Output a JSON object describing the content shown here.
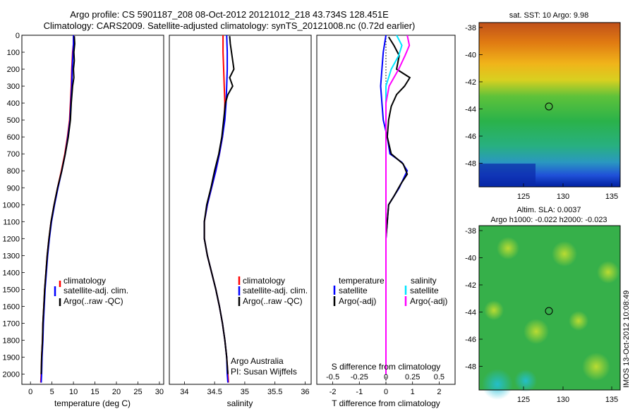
{
  "titles": {
    "line1": "Argo profile: CS 5901187_208 08-Oct-2012 20121012_218 43.734S 128.451E",
    "line2": "Climatology: CARS2009. Satellite-adjusted climatology: synTS_20121008.nc (0.72d earlier)"
  },
  "panels": {
    "temperature": {
      "xlabel": "temperature (deg C)",
      "xticks": [
        "0",
        "5",
        "10",
        "15",
        "20",
        "25",
        "30"
      ],
      "legend": [
        "climatology",
        "satellite-adj. clim.",
        "Argo(..raw -QC)"
      ]
    },
    "salinity": {
      "xlabel": "salinity",
      "xticks": [
        "34",
        "34.5",
        "35",
        "35.5",
        "36"
      ],
      "legend": [
        "climatology",
        "satellite-adj. clim.",
        "Argo(..raw -QC)"
      ],
      "annotation1": "Argo Australia",
      "annotation2": "PI: Susan Wijffels"
    },
    "difference": {
      "xlabel": "T difference from climatology",
      "xticks": [
        "-2",
        "-1",
        "0",
        "1",
        "2"
      ],
      "top_label": "S difference from climatology",
      "top_ticks": [
        "-0.5",
        "-0.25",
        "0",
        "0.25",
        "0.5"
      ],
      "legend_head_t": "temperature",
      "legend_head_s": "salinity",
      "legend_t": [
        "satellite",
        "Argo(-adj)"
      ],
      "legend_s": [
        "satellite",
        "Argo(-adj)"
      ]
    },
    "depth_ticks": [
      "0",
      "100",
      "200",
      "300",
      "400",
      "500",
      "600",
      "700",
      "800",
      "900",
      "1000",
      "1100",
      "1200",
      "1300",
      "1400",
      "1500",
      "1600",
      "1700",
      "1800",
      "1900",
      "2000"
    ]
  },
  "maps": {
    "sst_title": "sat. SST: 10 Argo: 9.98",
    "sla_title": "Altim. SLA: 0.0037",
    "sla_subtitle": "Argo h1000: -0.022 h2000: -0.023",
    "yticks": [
      "-38",
      "-40",
      "-42",
      "-44",
      "-46",
      "-48"
    ],
    "xticks": [
      "125",
      "130",
      "135"
    ]
  },
  "credit": "IMOS 13-Oct-2012 10:08:49",
  "colors": {
    "climatology": "#ff0000",
    "satellite": "#0000ff",
    "argo": "#000000",
    "salinity_sat": "#00e5ff",
    "salinity_argo": "#ff00ff"
  },
  "chart_data": [
    {
      "type": "line",
      "title": "",
      "xlabel": "temperature (deg C)",
      "ylabel": "",
      "xlim": [
        -2,
        31
      ],
      "ylim": [
        2060,
        0
      ],
      "series": [
        {
          "name": "climatology",
          "points": [
            [
              10,
              0
            ],
            [
              10,
              50
            ],
            [
              9.8,
              100
            ],
            [
              9.6,
              200
            ],
            [
              9.5,
              300
            ],
            [
              9.3,
              400
            ],
            [
              9.1,
              500
            ],
            [
              8.6,
              600
            ],
            [
              8.0,
              700
            ],
            [
              7.2,
              800
            ],
            [
              6.3,
              900
            ],
            [
              5.5,
              1000
            ],
            [
              4.8,
              1100
            ],
            [
              4.3,
              1200
            ],
            [
              3.9,
              1300
            ],
            [
              3.6,
              1400
            ],
            [
              3.3,
              1500
            ],
            [
              3.1,
              1600
            ],
            [
              2.9,
              1700
            ],
            [
              2.8,
              1800
            ],
            [
              2.6,
              1900
            ],
            [
              2.5,
              2000
            ],
            [
              2.4,
              2050
            ]
          ]
        },
        {
          "name": "satellite-adj. clim.",
          "points": [
            [
              10,
              0
            ],
            [
              10,
              50
            ],
            [
              9.9,
              100
            ],
            [
              9.7,
              200
            ],
            [
              9.6,
              300
            ],
            [
              9.4,
              400
            ],
            [
              9.2,
              500
            ],
            [
              8.7,
              600
            ],
            [
              8.1,
              700
            ],
            [
              7.3,
              800
            ],
            [
              6.4,
              900
            ],
            [
              5.6,
              1000
            ],
            [
              4.9,
              1100
            ],
            [
              4.4,
              1200
            ],
            [
              4.0,
              1300
            ],
            [
              3.7,
              1400
            ],
            [
              3.4,
              1500
            ],
            [
              3.2,
              1600
            ],
            [
              3.0,
              1700
            ],
            [
              2.9,
              1800
            ],
            [
              2.7,
              1900
            ],
            [
              2.6,
              2000
            ],
            [
              2.5,
              2050
            ]
          ]
        },
        {
          "name": "Argo(..raw -QC)",
          "points": [
            [
              10.2,
              5
            ],
            [
              10.3,
              50
            ],
            [
              10.1,
              100
            ],
            [
              10.2,
              150
            ],
            [
              10.0,
              200
            ],
            [
              10.1,
              250
            ],
            [
              9.8,
              300
            ],
            [
              9.5,
              400
            ],
            [
              9.3,
              500
            ],
            [
              8.8,
              600
            ],
            [
              8.1,
              700
            ],
            [
              7.3,
              800
            ],
            [
              6.3,
              900
            ],
            [
              5.5,
              1000
            ],
            [
              4.8,
              1100
            ],
            [
              4.3,
              1200
            ],
            [
              3.9,
              1300
            ],
            [
              3.6,
              1400
            ],
            [
              3.3,
              1500
            ],
            [
              3.1,
              1600
            ],
            [
              2.9,
              1700
            ],
            [
              2.8,
              1800
            ],
            [
              2.6,
              1900
            ],
            [
              2.5,
              2000
            ]
          ]
        }
      ]
    },
    {
      "type": "line",
      "title": "",
      "xlabel": "salinity",
      "ylabel": "",
      "xlim": [
        33.75,
        36.1
      ],
      "ylim": [
        2060,
        0
      ],
      "series": [
        {
          "name": "climatology",
          "points": [
            [
              34.64,
              0
            ],
            [
              34.64,
              100
            ],
            [
              34.65,
              200
            ],
            [
              34.66,
              300
            ],
            [
              34.67,
              400
            ],
            [
              34.66,
              500
            ],
            [
              34.63,
              600
            ],
            [
              34.58,
              700
            ],
            [
              34.52,
              800
            ],
            [
              34.45,
              900
            ],
            [
              34.38,
              1000
            ],
            [
              34.33,
              1100
            ],
            [
              34.33,
              1200
            ],
            [
              34.38,
              1300
            ],
            [
              34.45,
              1400
            ],
            [
              34.52,
              1500
            ],
            [
              34.58,
              1600
            ],
            [
              34.63,
              1700
            ],
            [
              34.67,
              1800
            ],
            [
              34.7,
              1900
            ],
            [
              34.72,
              2000
            ],
            [
              34.73,
              2050
            ]
          ]
        },
        {
          "name": "satellite-adj. clim.",
          "points": [
            [
              34.7,
              0
            ],
            [
              34.71,
              100
            ],
            [
              34.71,
              200
            ],
            [
              34.7,
              300
            ],
            [
              34.69,
              400
            ],
            [
              34.67,
              500
            ],
            [
              34.63,
              600
            ],
            [
              34.58,
              700
            ],
            [
              34.52,
              800
            ],
            [
              34.45,
              900
            ],
            [
              34.38,
              1000
            ],
            [
              34.33,
              1100
            ],
            [
              34.33,
              1200
            ],
            [
              34.38,
              1300
            ],
            [
              34.45,
              1400
            ],
            [
              34.52,
              1500
            ],
            [
              34.58,
              1600
            ],
            [
              34.63,
              1700
            ],
            [
              34.67,
              1800
            ],
            [
              34.7,
              1900
            ],
            [
              34.71,
              2000
            ],
            [
              34.72,
              2050
            ]
          ]
        },
        {
          "name": "Argo(..raw -QC)",
          "points": [
            [
              34.75,
              5
            ],
            [
              34.76,
              50
            ],
            [
              34.78,
              100
            ],
            [
              34.8,
              150
            ],
            [
              34.82,
              200
            ],
            [
              34.75,
              250
            ],
            [
              34.8,
              300
            ],
            [
              34.72,
              350
            ],
            [
              34.68,
              400
            ],
            [
              34.65,
              500
            ],
            [
              34.62,
              600
            ],
            [
              34.57,
              700
            ],
            [
              34.5,
              800
            ],
            [
              34.44,
              900
            ],
            [
              34.37,
              1000
            ],
            [
              34.33,
              1100
            ],
            [
              34.33,
              1200
            ],
            [
              34.38,
              1300
            ],
            [
              34.45,
              1400
            ],
            [
              34.52,
              1500
            ],
            [
              34.58,
              1600
            ],
            [
              34.63,
              1700
            ],
            [
              34.67,
              1800
            ],
            [
              34.7,
              1900
            ],
            [
              34.72,
              2000
            ]
          ]
        }
      ]
    },
    {
      "type": "line",
      "title": "",
      "xlabel": "T difference from climatology",
      "x2label": "S difference from climatology",
      "ylabel": "",
      "xlim": [
        -2.6,
        2.6
      ],
      "x2lim": [
        -0.65,
        0.65
      ],
      "ylim": [
        2060,
        0
      ],
      "series": [
        {
          "name": "temperature satellite",
          "points": [
            [
              0.0,
              0
            ],
            [
              -0.1,
              100
            ],
            [
              -0.15,
              200
            ],
            [
              -0.2,
              300
            ],
            [
              -0.15,
              400
            ],
            [
              -0.1,
              500
            ],
            [
              0.05,
              600
            ],
            [
              0.15,
              700
            ],
            [
              0.6,
              750
            ],
            [
              0.8,
              800
            ],
            [
              0.5,
              900
            ],
            [
              0.3,
              950
            ],
            [
              0.1,
              1000
            ],
            [
              0.05,
              1100
            ],
            [
              0.0,
              1200
            ],
            [
              0.0,
              1400
            ],
            [
              0.0,
              1600
            ],
            [
              0.0,
              1800
            ],
            [
              0.0,
              2000
            ]
          ]
        },
        {
          "name": "temperature Argo(-adj)",
          "points": [
            [
              0.1,
              10
            ],
            [
              0.3,
              60
            ],
            [
              0.5,
              120
            ],
            [
              0.4,
              200
            ],
            [
              0.9,
              250
            ],
            [
              0.7,
              300
            ],
            [
              0.4,
              350
            ],
            [
              0.2,
              420
            ],
            [
              0.1,
              500
            ],
            [
              0.05,
              600
            ],
            [
              0.2,
              700
            ],
            [
              0.65,
              760
            ],
            [
              0.8,
              820
            ],
            [
              0.55,
              880
            ],
            [
              0.3,
              950
            ],
            [
              0.1,
              1000
            ],
            [
              0.05,
              1100
            ],
            [
              0.0,
              1200
            ],
            [
              0.0,
              1400
            ],
            [
              0.0,
              1600
            ],
            [
              0.0,
              1800
            ],
            [
              0.0,
              2000
            ]
          ]
        },
        {
          "name": "salinity satellite",
          "points": [
            [
              0.1,
              0
            ],
            [
              0.15,
              60
            ],
            [
              0.12,
              120
            ],
            [
              0.05,
              200
            ],
            [
              0.0,
              300
            ],
            [
              0.0,
              400
            ],
            [
              0.0,
              600
            ],
            [
              0.0,
              800
            ],
            [
              0.0,
              1000
            ],
            [
              0.0,
              1200
            ],
            [
              0.0,
              1400
            ],
            [
              0.0,
              1600
            ],
            [
              0.0,
              1800
            ],
            [
              0.0,
              2000
            ]
          ]
        },
        {
          "name": "salinity Argo(-adj)",
          "points": [
            [
              0.2,
              0
            ],
            [
              0.22,
              60
            ],
            [
              0.18,
              120
            ],
            [
              0.12,
              200
            ],
            [
              0.03,
              300
            ],
            [
              0.0,
              400
            ],
            [
              0.0,
              600
            ],
            [
              0.0,
              800
            ],
            [
              0.0,
              1000
            ],
            [
              0.0,
              1200
            ],
            [
              0.0,
              1400
            ],
            [
              0.0,
              1600
            ],
            [
              0.0,
              1800
            ],
            [
              0.0,
              2000
            ]
          ]
        }
      ]
    }
  ]
}
